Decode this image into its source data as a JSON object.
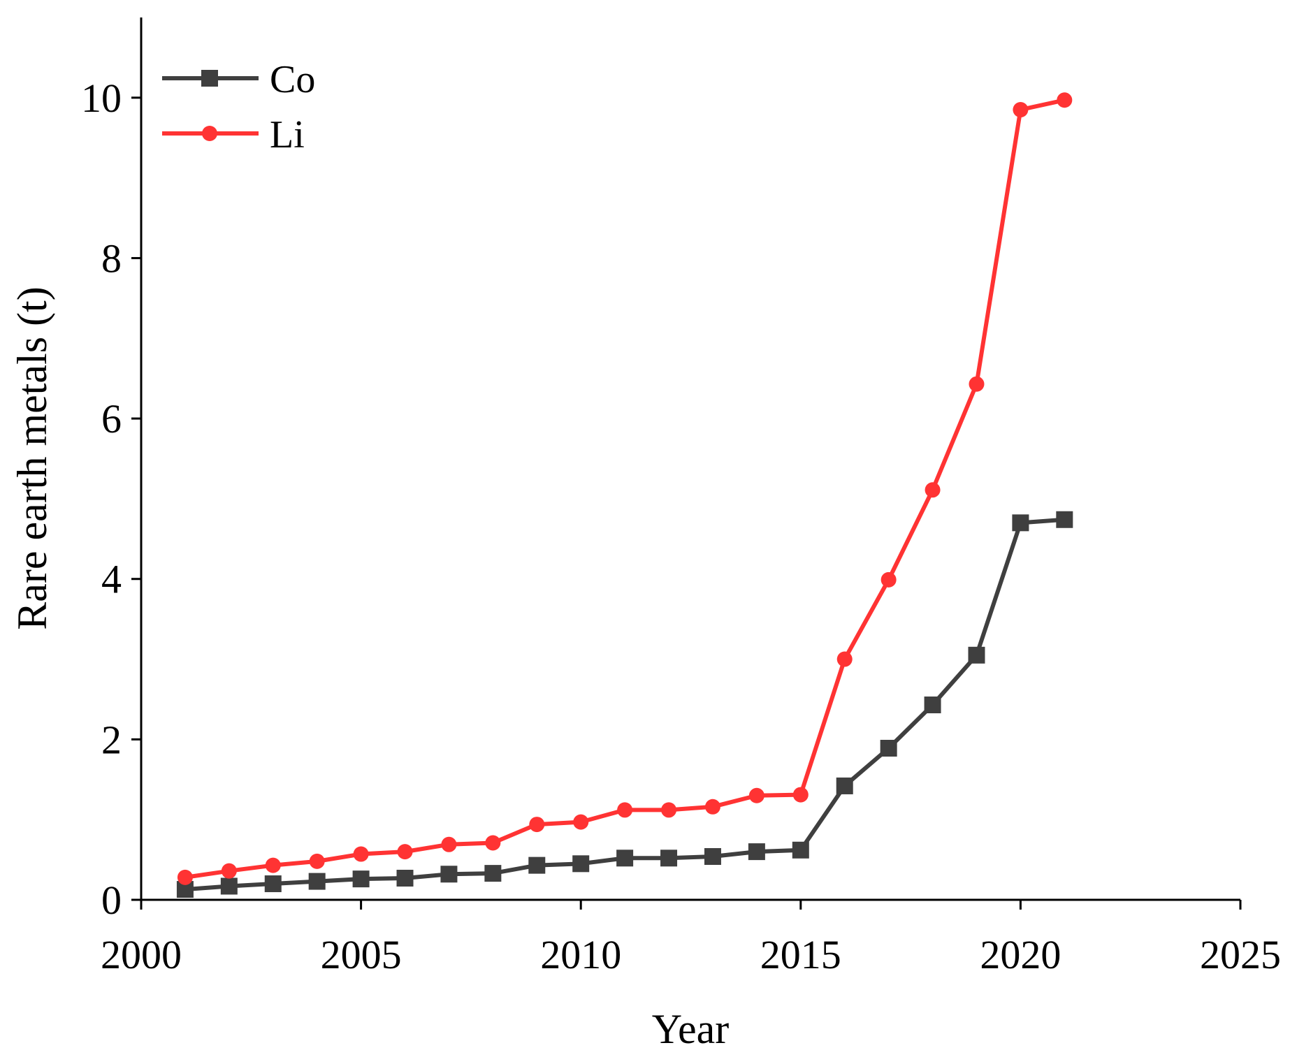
{
  "chart_data": {
    "type": "line",
    "title": "",
    "xlabel": "Year",
    "ylabel": "Rare earth metals (t)",
    "xlim": [
      2000,
      2025
    ],
    "ylim": [
      0,
      11
    ],
    "xticks": [
      2000,
      2005,
      2010,
      2015,
      2020,
      2025
    ],
    "yticks": [
      0,
      2,
      4,
      6,
      8,
      10
    ],
    "x": [
      2001,
      2002,
      2003,
      2004,
      2005,
      2006,
      2007,
      2008,
      2009,
      2010,
      2011,
      2012,
      2013,
      2014,
      2015,
      2016,
      2017,
      2018,
      2019,
      2020,
      2021
    ],
    "series": [
      {
        "name": "Co",
        "color": "#3f3f3f",
        "marker": "square",
        "values": [
          0.13,
          0.17,
          0.2,
          0.23,
          0.26,
          0.27,
          0.32,
          0.33,
          0.43,
          0.45,
          0.52,
          0.52,
          0.54,
          0.6,
          0.62,
          1.42,
          1.89,
          2.43,
          3.05,
          4.7,
          4.74
        ]
      },
      {
        "name": "Li",
        "color": "#ff3333",
        "marker": "circle",
        "values": [
          0.28,
          0.36,
          0.43,
          0.48,
          0.57,
          0.6,
          0.69,
          0.71,
          0.94,
          0.97,
          1.12,
          1.12,
          1.16,
          1.3,
          1.31,
          3.0,
          3.99,
          5.11,
          6.43,
          9.85,
          9.97
        ]
      }
    ],
    "legend_position": "top-left",
    "grid": false
  }
}
